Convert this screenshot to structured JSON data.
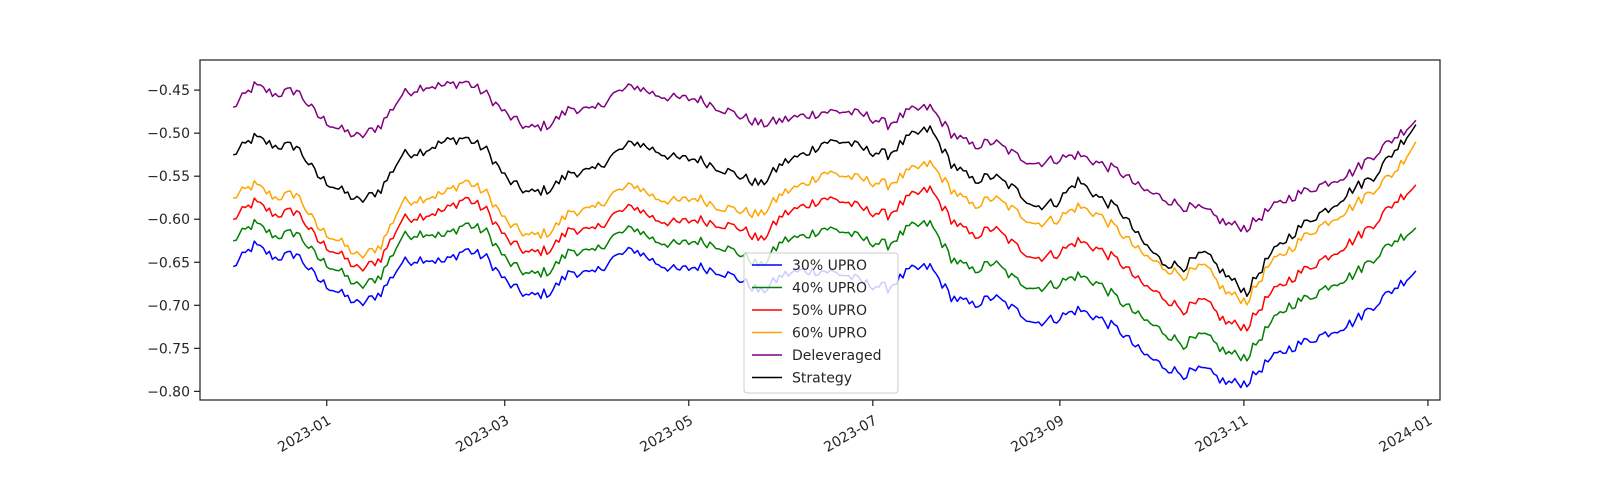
{
  "chart_data": {
    "type": "line",
    "title": "",
    "xlabel": "",
    "ylabel": "",
    "grid": false,
    "legend_placement": "bottom-center",
    "x_range": [
      "2022-11-20",
      "2024-01-05"
    ],
    "ylim": [
      -0.81,
      -0.415
    ],
    "y_ticks": [
      -0.45,
      -0.5,
      -0.55,
      -0.6,
      -0.65,
      -0.7,
      -0.75,
      -0.8
    ],
    "y_tick_labels": [
      "−0.45",
      "−0.50",
      "−0.55",
      "−0.60",
      "−0.65",
      "−0.70",
      "−0.75",
      "−0.80"
    ],
    "x_ticks": [
      "2023-01-01",
      "2023-03-01",
      "2023-05-01",
      "2023-07-01",
      "2023-09-01",
      "2023-11-01",
      "2024-01-01"
    ],
    "x_tick_labels": [
      "2023-01",
      "2023-03",
      "2023-05",
      "2023-07",
      "2023-09",
      "2023-11",
      "2024-01"
    ],
    "x": [
      "2022-12-01",
      "2022-12-08",
      "2022-12-15",
      "2022-12-22",
      "2022-12-29",
      "2023-01-05",
      "2023-01-12",
      "2023-01-19",
      "2023-01-26",
      "2023-02-02",
      "2023-02-09",
      "2023-02-16",
      "2023-02-23",
      "2023-03-02",
      "2023-03-09",
      "2023-03-16",
      "2023-03-23",
      "2023-03-30",
      "2023-04-06",
      "2023-04-13",
      "2023-04-20",
      "2023-04-27",
      "2023-05-04",
      "2023-05-11",
      "2023-05-18",
      "2023-05-25",
      "2023-06-01",
      "2023-06-08",
      "2023-06-15",
      "2023-06-22",
      "2023-06-29",
      "2023-07-06",
      "2023-07-13",
      "2023-07-20",
      "2023-07-27",
      "2023-08-03",
      "2023-08-10",
      "2023-08-17",
      "2023-08-24",
      "2023-08-31",
      "2023-09-07",
      "2023-09-14",
      "2023-09-21",
      "2023-09-28",
      "2023-10-05",
      "2023-10-12",
      "2023-10-19",
      "2023-10-26",
      "2023-11-02",
      "2023-11-09",
      "2023-11-16",
      "2023-11-23",
      "2023-11-30",
      "2023-12-07",
      "2023-12-14",
      "2023-12-21",
      "2023-12-28"
    ],
    "series": [
      {
        "name": "30% UPRO",
        "color": "#0000ff",
        "values": [
          -0.655,
          -0.63,
          -0.645,
          -0.64,
          -0.67,
          -0.685,
          -0.7,
          -0.685,
          -0.65,
          -0.645,
          -0.65,
          -0.635,
          -0.645,
          -0.675,
          -0.69,
          -0.685,
          -0.66,
          -0.665,
          -0.645,
          -0.635,
          -0.65,
          -0.66,
          -0.655,
          -0.66,
          -0.67,
          -0.685,
          -0.665,
          -0.66,
          -0.66,
          -0.665,
          -0.675,
          -0.68,
          -0.66,
          -0.655,
          -0.69,
          -0.7,
          -0.69,
          -0.705,
          -0.72,
          -0.715,
          -0.705,
          -0.715,
          -0.73,
          -0.755,
          -0.77,
          -0.78,
          -0.775,
          -0.79,
          -0.79,
          -0.765,
          -0.75,
          -0.74,
          -0.73,
          -0.72,
          -0.7,
          -0.68,
          -0.66
        ]
      },
      {
        "name": "40% UPRO",
        "color": "#008000",
        "values": [
          -0.625,
          -0.605,
          -0.62,
          -0.615,
          -0.645,
          -0.66,
          -0.68,
          -0.665,
          -0.62,
          -0.615,
          -0.62,
          -0.605,
          -0.615,
          -0.65,
          -0.665,
          -0.66,
          -0.635,
          -0.64,
          -0.62,
          -0.61,
          -0.625,
          -0.63,
          -0.625,
          -0.63,
          -0.64,
          -0.655,
          -0.625,
          -0.62,
          -0.61,
          -0.615,
          -0.625,
          -0.63,
          -0.61,
          -0.605,
          -0.645,
          -0.66,
          -0.65,
          -0.67,
          -0.68,
          -0.675,
          -0.665,
          -0.675,
          -0.695,
          -0.715,
          -0.73,
          -0.745,
          -0.735,
          -0.755,
          -0.76,
          -0.725,
          -0.7,
          -0.69,
          -0.675,
          -0.665,
          -0.645,
          -0.625,
          -0.61
        ]
      },
      {
        "name": "50% UPRO",
        "color": "#ff0000",
        "values": [
          -0.6,
          -0.58,
          -0.595,
          -0.59,
          -0.625,
          -0.64,
          -0.66,
          -0.645,
          -0.6,
          -0.595,
          -0.59,
          -0.575,
          -0.59,
          -0.625,
          -0.64,
          -0.635,
          -0.61,
          -0.615,
          -0.595,
          -0.585,
          -0.6,
          -0.605,
          -0.6,
          -0.605,
          -0.61,
          -0.625,
          -0.595,
          -0.585,
          -0.575,
          -0.58,
          -0.59,
          -0.595,
          -0.575,
          -0.565,
          -0.6,
          -0.62,
          -0.61,
          -0.63,
          -0.645,
          -0.64,
          -0.625,
          -0.635,
          -0.65,
          -0.675,
          -0.69,
          -0.705,
          -0.695,
          -0.72,
          -0.725,
          -0.69,
          -0.67,
          -0.655,
          -0.64,
          -0.625,
          -0.605,
          -0.58,
          -0.56
        ]
      },
      {
        "name": "60% UPRO",
        "color": "#ffa500",
        "values": [
          -0.575,
          -0.56,
          -0.575,
          -0.57,
          -0.61,
          -0.625,
          -0.645,
          -0.63,
          -0.58,
          -0.575,
          -0.57,
          -0.555,
          -0.57,
          -0.605,
          -0.62,
          -0.615,
          -0.59,
          -0.59,
          -0.57,
          -0.56,
          -0.575,
          -0.58,
          -0.575,
          -0.585,
          -0.59,
          -0.595,
          -0.57,
          -0.56,
          -0.545,
          -0.55,
          -0.555,
          -0.56,
          -0.545,
          -0.535,
          -0.565,
          -0.585,
          -0.575,
          -0.59,
          -0.605,
          -0.6,
          -0.585,
          -0.595,
          -0.615,
          -0.64,
          -0.655,
          -0.665,
          -0.655,
          -0.685,
          -0.695,
          -0.655,
          -0.635,
          -0.615,
          -0.6,
          -0.585,
          -0.565,
          -0.545,
          -0.51
        ]
      },
      {
        "name": "Deleveraged",
        "color": "#800080",
        "values": [
          -0.47,
          -0.445,
          -0.455,
          -0.45,
          -0.48,
          -0.495,
          -0.505,
          -0.49,
          -0.455,
          -0.445,
          -0.445,
          -0.44,
          -0.455,
          -0.48,
          -0.495,
          -0.49,
          -0.47,
          -0.475,
          -0.455,
          -0.445,
          -0.455,
          -0.46,
          -0.46,
          -0.47,
          -0.48,
          -0.49,
          -0.485,
          -0.48,
          -0.475,
          -0.475,
          -0.48,
          -0.49,
          -0.475,
          -0.47,
          -0.5,
          -0.515,
          -0.51,
          -0.525,
          -0.535,
          -0.53,
          -0.525,
          -0.535,
          -0.545,
          -0.565,
          -0.575,
          -0.585,
          -0.59,
          -0.605,
          -0.61,
          -0.59,
          -0.575,
          -0.565,
          -0.555,
          -0.545,
          -0.525,
          -0.505,
          -0.485
        ]
      },
      {
        "name": "Strategy",
        "color": "#000000",
        "values": [
          -0.525,
          -0.505,
          -0.515,
          -0.515,
          -0.55,
          -0.565,
          -0.58,
          -0.565,
          -0.525,
          -0.52,
          -0.51,
          -0.505,
          -0.52,
          -0.555,
          -0.57,
          -0.565,
          -0.545,
          -0.545,
          -0.525,
          -0.51,
          -0.52,
          -0.53,
          -0.53,
          -0.54,
          -0.55,
          -0.56,
          -0.535,
          -0.525,
          -0.51,
          -0.51,
          -0.52,
          -0.525,
          -0.505,
          -0.495,
          -0.535,
          -0.555,
          -0.55,
          -0.565,
          -0.585,
          -0.58,
          -0.555,
          -0.575,
          -0.59,
          -0.625,
          -0.65,
          -0.655,
          -0.64,
          -0.665,
          -0.685,
          -0.645,
          -0.62,
          -0.6,
          -0.585,
          -0.565,
          -0.55,
          -0.52,
          -0.49
        ]
      }
    ]
  }
}
